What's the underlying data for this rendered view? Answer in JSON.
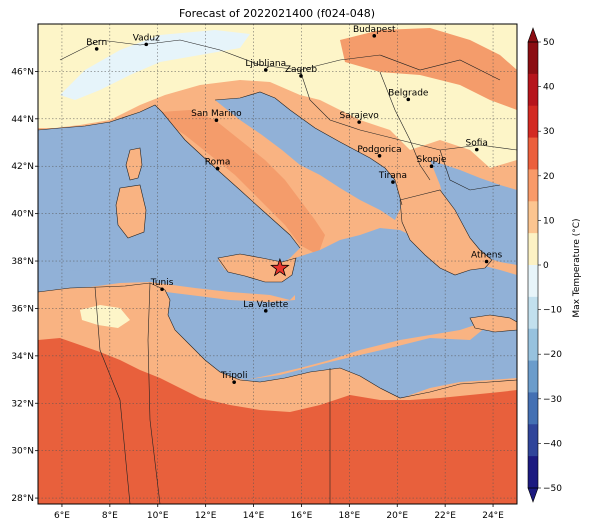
{
  "title": "Forecast of 2022021400 (f024-048)",
  "map": {
    "lon_range": [
      5,
      25
    ],
    "lat_range": [
      27.75,
      48
    ],
    "lon_ticks": [
      "6°E",
      "8°E",
      "10°E",
      "12°E",
      "14°E",
      "16°E",
      "18°E",
      "20°E",
      "22°E",
      "24°E"
    ],
    "lat_ticks": [
      "28°N",
      "30°N",
      "32°N",
      "34°N",
      "36°N",
      "38°N",
      "40°N",
      "42°N",
      "44°N",
      "46°N"
    ],
    "gridlines": true,
    "ocean_color": "#91b1d7",
    "marker": {
      "name": "star",
      "lon": 15.1,
      "lat": 37.7,
      "color": "#e8352d"
    }
  },
  "cities": [
    {
      "name": "Bern",
      "lon": 7.45,
      "lat": 46.95
    },
    {
      "name": "Vaduz",
      "lon": 9.52,
      "lat": 47.14
    },
    {
      "name": "Budapest",
      "lon": 19.04,
      "lat": 47.5
    },
    {
      "name": "Ljubljana",
      "lon": 14.51,
      "lat": 46.06
    },
    {
      "name": "Zagreb",
      "lon": 15.98,
      "lat": 45.81
    },
    {
      "name": "Belgrade",
      "lon": 20.46,
      "lat": 44.82
    },
    {
      "name": "San Marino",
      "lon": 12.45,
      "lat": 43.94
    },
    {
      "name": "Sarajevo",
      "lon": 18.41,
      "lat": 43.86
    },
    {
      "name": "Sofia",
      "lon": 23.32,
      "lat": 42.7
    },
    {
      "name": "Podgorica",
      "lon": 19.26,
      "lat": 42.44
    },
    {
      "name": "Skopje",
      "lon": 21.43,
      "lat": 42.0
    },
    {
      "name": "Roma",
      "lon": 12.5,
      "lat": 41.9
    },
    {
      "name": "Tirana",
      "lon": 19.82,
      "lat": 41.33
    },
    {
      "name": "Athens",
      "lon": 23.73,
      "lat": 37.98
    },
    {
      "name": "Tunis",
      "lon": 10.18,
      "lat": 36.81
    },
    {
      "name": "La Valette",
      "lon": 14.51,
      "lat": 35.9
    },
    {
      "name": "Tripoli",
      "lon": 13.19,
      "lat": 32.89
    }
  ],
  "colorbar": {
    "label": "Max Temperature (°C)",
    "ticks": [
      "50",
      "40",
      "30",
      "20",
      "10",
      "0",
      "−10",
      "−20",
      "−30",
      "−40",
      "−50"
    ],
    "colors_top_to_bottom": [
      "#8b0d12",
      "#b6151c",
      "#d32a22",
      "#ec5f3c",
      "#f99a69",
      "#fcc590",
      "#fdf2c4",
      "#e8f5fa",
      "#c2e0ee",
      "#97c2de",
      "#6b9ccb",
      "#4470b3",
      "#30459a",
      "#1c1a80"
    ]
  },
  "legend_bins": {
    "above_30": "#e8603c",
    "20_to_30": "#f7a172",
    "10_to_20": "#f9b382",
    "0_to_10": "#fdf5c8",
    "below_0": "#e6f4fa"
  }
}
